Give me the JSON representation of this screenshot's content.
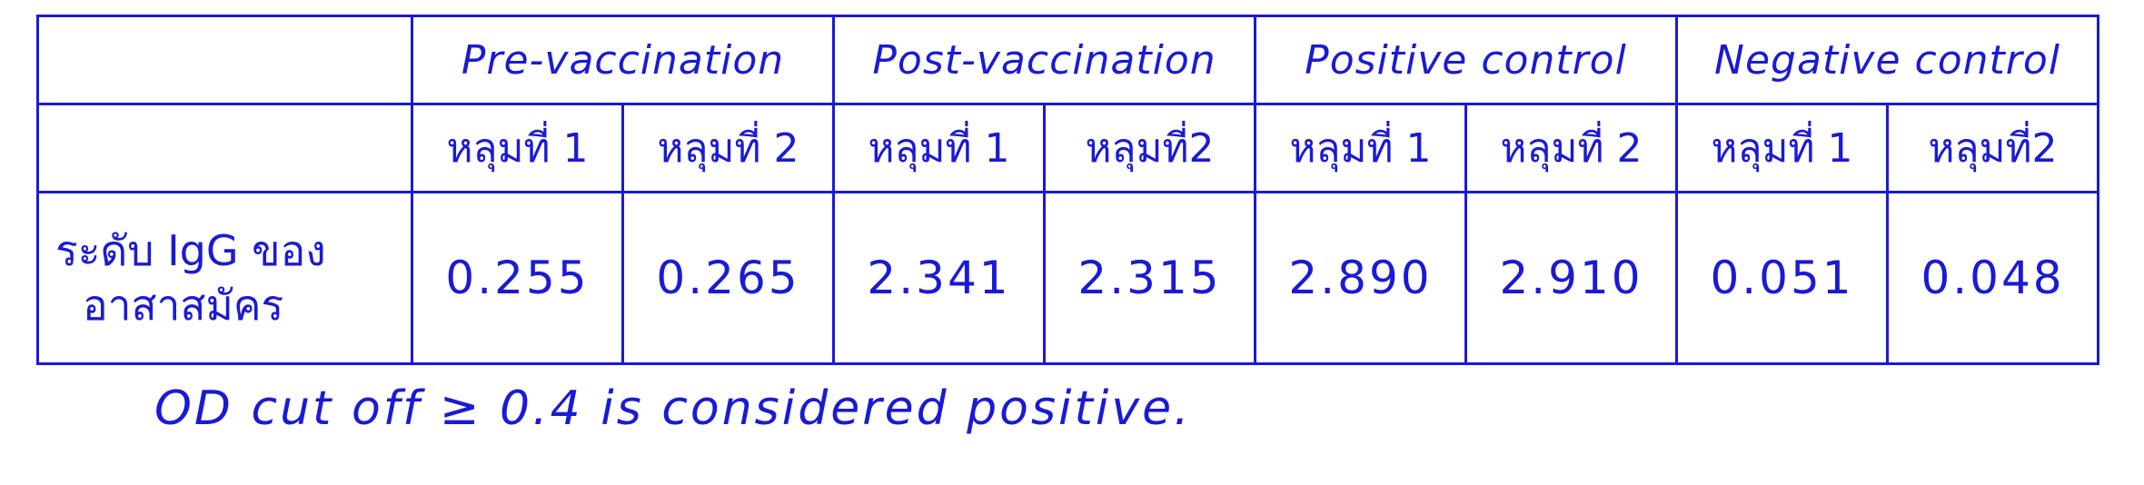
{
  "table": {
    "groups": [
      {
        "label": "Pre-vaccination",
        "wells": [
          "หลุมที่ 1",
          "หลุมที่ 2"
        ],
        "values": [
          "0.255",
          "0.265"
        ]
      },
      {
        "label": "Post-vaccination",
        "wells": [
          "หลุมที่ 1",
          "หลุมที่2"
        ],
        "values": [
          "2.341",
          "2.315"
        ]
      },
      {
        "label": "Positive control",
        "wells": [
          "หลุมที่ 1",
          "หลุมที่ 2"
        ],
        "values": [
          "2.890",
          "2.910"
        ]
      },
      {
        "label": "Negative control",
        "wells": [
          "หลุมที่ 1",
          "หลุมที่2"
        ],
        "values": [
          "0.051",
          "0.048"
        ]
      }
    ],
    "row_label": {
      "line1": "ระดับ IgG ของ",
      "line2": "อาสาสมัคร"
    }
  },
  "footnote": "OD cut off ≥ 0.4 is considered positive.",
  "colors": {
    "ink": "#1a1ad6",
    "background": "#ffffff"
  }
}
